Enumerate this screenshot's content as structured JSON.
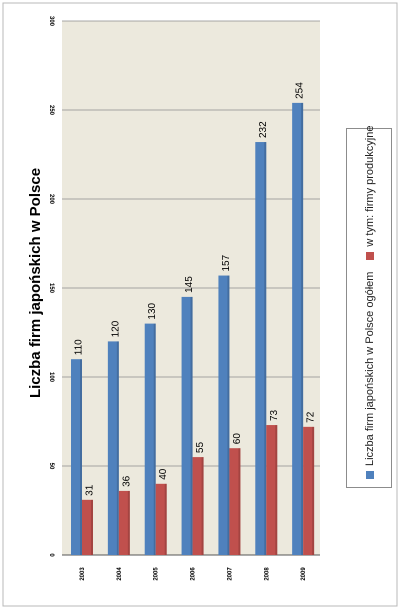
{
  "chart_data": {
    "type": "bar",
    "title": "Liczba firm japońskich w Polsce",
    "categories": [
      "2003",
      "2004",
      "2005",
      "2006",
      "2007",
      "2008",
      "2009"
    ],
    "series": [
      {
        "name": "Liczba firm japońskich w Polsce ogółem",
        "values": [
          110,
          120,
          130,
          145,
          157,
          232,
          254
        ],
        "color": "#4f81bd"
      },
      {
        "name": "w tym: firmy produkcyjne",
        "values": [
          31,
          36,
          40,
          55,
          60,
          73,
          72
        ],
        "color": "#c0504d"
      }
    ],
    "value_axis": {
      "min": 0,
      "max": 300,
      "ticks": [
        0,
        50,
        100,
        150,
        200,
        250,
        300
      ]
    },
    "grid": true,
    "legend_position": "right",
    "orientation": "rotated 90° counter-clockwise"
  },
  "colors": {
    "plot_background": "#ece9dd",
    "gridline": "#8c8c8c"
  }
}
